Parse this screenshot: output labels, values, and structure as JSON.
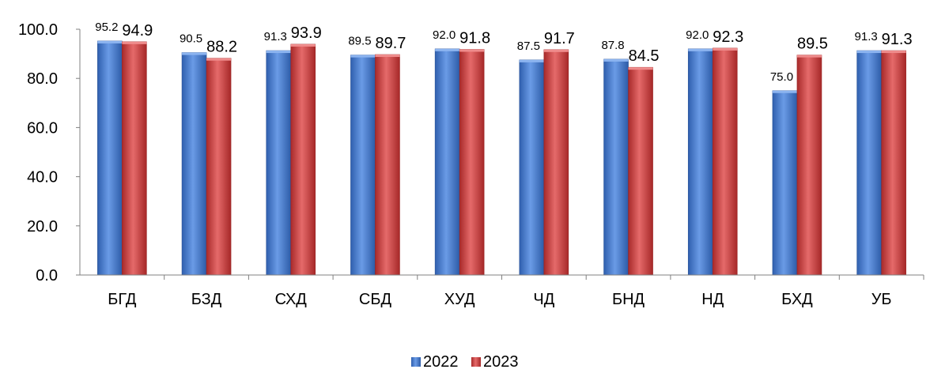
{
  "chart_data": {
    "type": "bar",
    "categories": [
      "БГД",
      "БЗД",
      "СХД",
      "СБД",
      "ХУД",
      "ЧД",
      "БНД",
      "НД",
      "БХД",
      "УБ"
    ],
    "series": [
      {
        "name": "2022",
        "values": [
          95.2,
          90.5,
          91.3,
          89.5,
          92.0,
          87.5,
          87.8,
          92.0,
          75.0,
          91.3
        ],
        "labels": [
          "95.2",
          "90.5",
          "91.3",
          "89.5",
          "92.0",
          "87.5",
          "87.8",
          "92.0",
          "75.0",
          "91.3"
        ]
      },
      {
        "name": "2023",
        "values": [
          94.9,
          88.2,
          93.9,
          89.7,
          91.8,
          91.7,
          84.5,
          92.3,
          89.5,
          91.3
        ],
        "labels": [
          "94.9",
          "88.2",
          "93.9",
          "89.7",
          "91.8",
          "91.7",
          "84.5",
          "92.3",
          "89.5",
          "91.3"
        ]
      }
    ],
    "yticks": [
      "0.0",
      "20.0",
      "40.0",
      "60.0",
      "80.0",
      "100.0"
    ],
    "ylim": [
      0,
      100
    ],
    "grid": false,
    "legend_position": "bottom",
    "colors": {
      "2022": "#4a7fd0",
      "2023": "#d63f3f"
    }
  }
}
